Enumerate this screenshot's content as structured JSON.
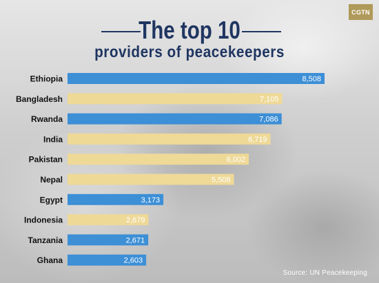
{
  "header": {
    "title_line1": "The top 10",
    "title_line2": "providers of peacekeepers",
    "logo_text": "CGTN"
  },
  "footer": {
    "source": "Source: UN Peacekeeping"
  },
  "chart_data": {
    "type": "bar",
    "orientation": "horizontal",
    "title": "The top 10 providers of peacekeepers",
    "categories": [
      "Ethiopia",
      "Bangladesh",
      "Rwanda",
      "India",
      "Pakistan",
      "Nepal",
      "Egypt",
      "Indonesia",
      "Tanzania",
      "Ghana"
    ],
    "values": [
      8508,
      7105,
      7086,
      6719,
      6002,
      5508,
      3173,
      2679,
      2671,
      2603
    ],
    "value_labels": [
      "8,508",
      "7,105",
      "7,086",
      "6,719",
      "6,002",
      "5,508",
      "3,173",
      "2,679",
      "2,671",
      "2,603"
    ],
    "bar_colors": [
      "#3d8fd6",
      "#eed997",
      "#3d8fd6",
      "#eed997",
      "#eed997",
      "#eed997",
      "#3d8fd6",
      "#eed997",
      "#3d8fd6",
      "#3d8fd6"
    ],
    "xlim": [
      0,
      8508
    ],
    "grid": false,
    "legend": false,
    "source": "Source: UN Peacekeeping"
  },
  "colors": {
    "title": "#1f3561",
    "blue_bar": "#3d8fd6",
    "sand_bar": "#eed997",
    "category_text": "#111111",
    "value_text": "#ffffff",
    "logo_bg": "#b09a5a"
  }
}
